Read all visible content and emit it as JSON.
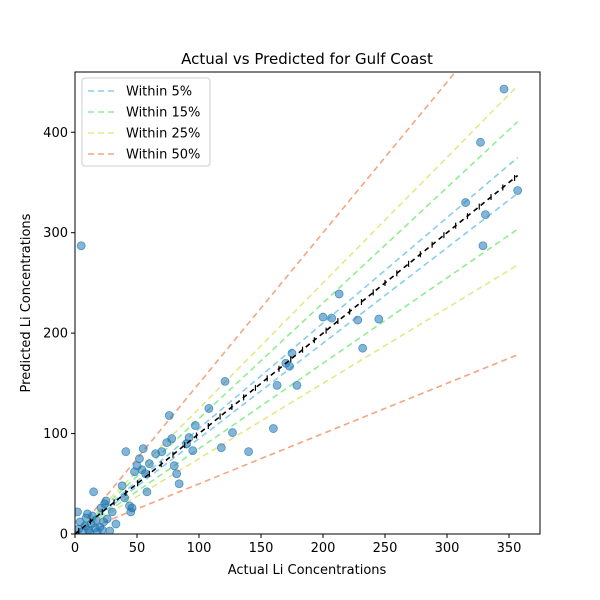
{
  "chart_data": {
    "type": "scatter",
    "title": "Actual vs Predicted for Gulf Coast",
    "xlabel": "Actual Li Concentrations",
    "ylabel": "Predicted Li Concentrations",
    "xlim": [
      0,
      375
    ],
    "ylim": [
      0,
      460
    ],
    "xticks": [
      "0",
      "50",
      "100",
      "150",
      "200",
      "250",
      "300",
      "350"
    ],
    "yticks": [
      "0",
      "100",
      "200",
      "300",
      "400"
    ],
    "grid": false,
    "legend_position": "top-left",
    "reference_line_range": [
      0,
      357
    ],
    "bands": [
      {
        "name": "Within 5%",
        "pct": 0.05,
        "color": "#87CEEB"
      },
      {
        "name": "Within 15%",
        "pct": 0.15,
        "color": "#90EE90"
      },
      {
        "name": "Within 25%",
        "pct": 0.25,
        "color": "#E3E88A"
      },
      {
        "name": "Within 50%",
        "pct": 0.5,
        "color": "#F4A582"
      }
    ],
    "point_color": "#1f77b4",
    "points": [
      [
        5,
        287
      ],
      [
        2,
        22
      ],
      [
        3,
        5
      ],
      [
        4,
        12
      ],
      [
        6,
        2
      ],
      [
        8,
        8
      ],
      [
        9,
        16
      ],
      [
        10,
        20
      ],
      [
        11,
        4
      ],
      [
        12,
        1
      ],
      [
        13,
        10
      ],
      [
        14,
        18
      ],
      [
        15,
        42
      ],
      [
        16,
        6
      ],
      [
        17,
        14
      ],
      [
        18,
        2
      ],
      [
        20,
        7
      ],
      [
        21,
        26
      ],
      [
        22,
        4
      ],
      [
        23,
        12
      ],
      [
        24,
        30
      ],
      [
        25,
        33
      ],
      [
        26,
        15
      ],
      [
        28,
        3
      ],
      [
        30,
        22
      ],
      [
        33,
        10
      ],
      [
        38,
        48
      ],
      [
        40,
        36
      ],
      [
        41,
        82
      ],
      [
        44,
        28
      ],
      [
        45,
        22
      ],
      [
        46,
        26
      ],
      [
        48,
        62
      ],
      [
        50,
        68
      ],
      [
        52,
        75
      ],
      [
        54,
        64
      ],
      [
        55,
        85
      ],
      [
        57,
        60
      ],
      [
        58,
        42
      ],
      [
        60,
        70
      ],
      [
        65,
        80
      ],
      [
        70,
        82
      ],
      [
        74,
        91
      ],
      [
        76,
        118
      ],
      [
        78,
        95
      ],
      [
        80,
        68
      ],
      [
        82,
        60
      ],
      [
        84,
        50
      ],
      [
        90,
        90
      ],
      [
        92,
        96
      ],
      [
        95,
        83
      ],
      [
        97,
        108
      ],
      [
        108,
        125
      ],
      [
        118,
        86
      ],
      [
        121,
        152
      ],
      [
        127,
        101
      ],
      [
        140,
        82
      ],
      [
        160,
        105
      ],
      [
        163,
        148
      ],
      [
        170,
        170
      ],
      [
        173,
        167
      ],
      [
        175,
        180
      ],
      [
        179,
        148
      ],
      [
        200,
        216
      ],
      [
        207,
        215
      ],
      [
        213,
        239
      ],
      [
        228,
        213
      ],
      [
        232,
        185
      ],
      [
        245,
        214
      ],
      [
        315,
        330
      ],
      [
        327,
        390
      ],
      [
        329,
        287
      ],
      [
        331,
        318
      ],
      [
        346,
        443
      ],
      [
        357,
        342
      ]
    ]
  }
}
